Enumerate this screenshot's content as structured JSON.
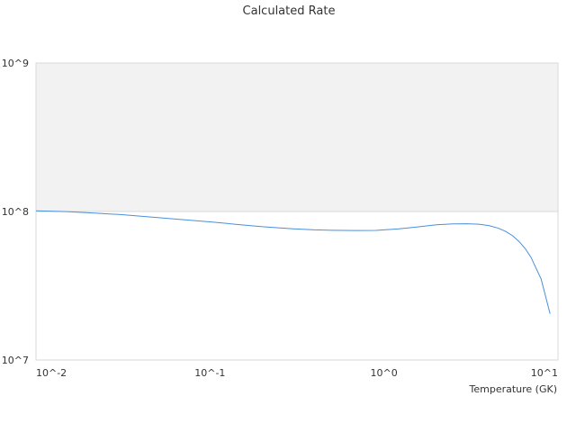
{
  "chart_data": {
    "type": "line",
    "title": "Calculated Rate",
    "xlabel": "Temperature (GK)",
    "ylabel": "",
    "x_scale": "log",
    "y_scale": "log",
    "xlim": [
      0.01,
      10
    ],
    "ylim": [
      10000000,
      1000000000
    ],
    "x_ticks": [
      "10^-2",
      "10^-1",
      "10^0",
      "10^1"
    ],
    "y_ticks": [
      "10^7",
      "10^8",
      "10^9"
    ],
    "grid": true,
    "shaded_band": {
      "y_from": 100000000,
      "y_to": 1000000000,
      "color": "#f2f2f2"
    },
    "series": [
      {
        "name": "",
        "color": "#4a90d9",
        "x": [
          0.01,
          0.012,
          0.015,
          0.02,
          0.03,
          0.05,
          0.08,
          0.1,
          0.15,
          0.2,
          0.3,
          0.4,
          0.5,
          0.7,
          0.9,
          1.0,
          1.2,
          1.5,
          2.0,
          2.5,
          3.0,
          3.5,
          4.0,
          4.5,
          5.0,
          5.5,
          6.0,
          6.5,
          7.0,
          8.0,
          9.0
        ],
        "y": [
          101000000,
          100500000,
          99800000,
          98000000,
          95500000,
          91000000,
          87000000,
          85200000,
          81500000,
          79000000,
          76500000,
          75200000,
          74700000,
          74500000,
          74600000,
          75200000,
          76300000,
          78300000,
          81500000,
          82500000,
          82700000,
          82100000,
          80400000,
          77500000,
          73500000,
          68500000,
          62500000,
          56000000,
          49000000,
          35000000,
          20500000
        ]
      }
    ]
  }
}
